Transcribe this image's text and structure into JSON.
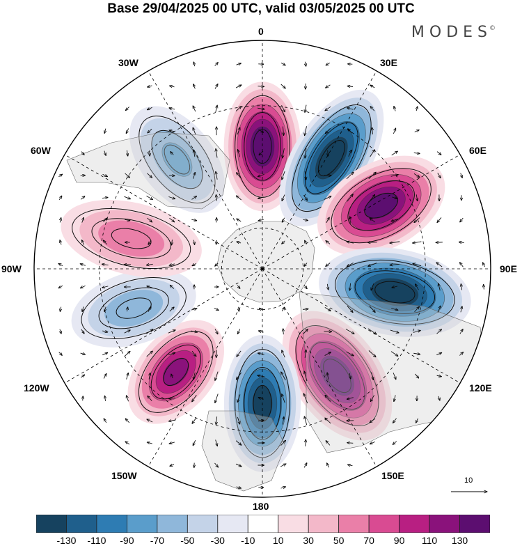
{
  "title": "Base 29/04/2025 00 UTC, valid 03/05/2025 00 UTC",
  "brand": "MODES",
  "brand_mark": "©",
  "longitude_labels": {
    "lon_0": "0",
    "lon_30e": "30E",
    "lon_60e": "60E",
    "lon_90e": "90E",
    "lon_120e": "120E",
    "lon_150e": "150E",
    "lon_180": "180",
    "lon_150w": "150W",
    "lon_120w": "120W",
    "lon_90w": "90W",
    "lon_60w": "60W",
    "lon_30w": "30W"
  },
  "reference_vector": "10",
  "colorbar": {
    "colors": [
      "#16425f",
      "#1f5f8c",
      "#2e7cb3",
      "#5a9dcb",
      "#8fb7da",
      "#c4d3e8",
      "#e6e8f3",
      "#ffffff",
      "#f9dde4",
      "#f3b8c9",
      "#ea7fa8",
      "#d94b92",
      "#b81f82",
      "#8a127b",
      "#5c0e70"
    ],
    "tick_labels": [
      "-130",
      "-110",
      "-90",
      "-70",
      "-50",
      "-30",
      "-10",
      "10",
      "30",
      "50",
      "70",
      "90",
      "110",
      "130"
    ]
  },
  "lobes": [
    {
      "lon": 0,
      "colat": 30,
      "value": 150,
      "ra": 16,
      "rb": 8
    },
    {
      "lon": 32,
      "colat": 32,
      "value": -150,
      "ra": 19,
      "rb": 8
    },
    {
      "lon": 62,
      "colat": 33,
      "value": 140,
      "ra": 17,
      "rb": 9
    },
    {
      "lon": 100,
      "colat": 33,
      "value": -150,
      "ra": 19,
      "rb": 9
    },
    {
      "lon": 145,
      "colat": 32,
      "value": 150,
      "ra": 18,
      "rb": 9
    },
    {
      "lon": 180,
      "colat": 33,
      "value": -140,
      "ra": 17,
      "rb": 8
    },
    {
      "lon": 220,
      "colat": 33,
      "value": 120,
      "ra": 15,
      "rb": 8
    },
    {
      "lon": 253,
      "colat": 33,
      "value": -70,
      "ra": 17,
      "rb": 8
    },
    {
      "lon": 283,
      "colat": 33,
      "value": 70,
      "ra": 19,
      "rb": 8
    },
    {
      "lon": 322,
      "colat": 34,
      "value": -80,
      "ra": 16,
      "rb": 8
    }
  ]
}
